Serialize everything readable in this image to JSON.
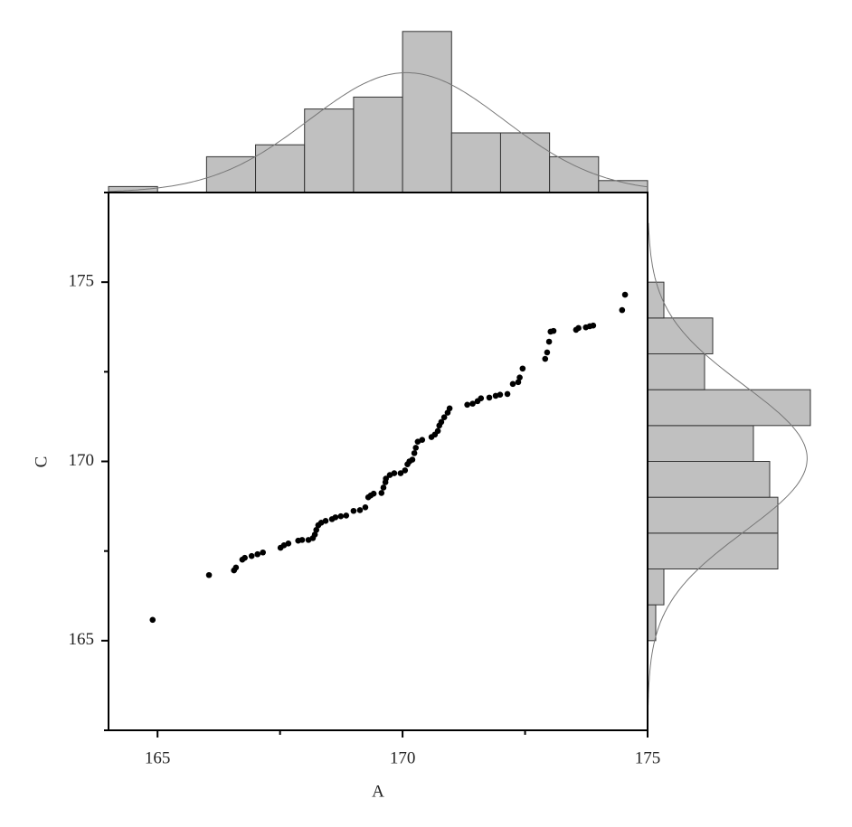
{
  "chart_data": {
    "type": "scatter",
    "x_label": "A",
    "y_label": "C",
    "x": [
      164.9,
      166.05,
      166.56,
      166.6,
      166.73,
      166.78,
      166.92,
      167.04,
      167.15,
      167.51,
      167.58,
      167.67,
      167.87,
      167.95,
      168.08,
      168.17,
      168.21,
      168.24,
      168.28,
      168.34,
      168.43,
      168.56,
      168.63,
      168.74,
      168.85,
      169.0,
      169.13,
      169.24,
      169.3,
      169.35,
      169.41,
      169.57,
      169.61,
      169.65,
      169.66,
      169.74,
      169.83,
      169.96,
      170.05,
      170.1,
      170.14,
      170.2,
      170.24,
      170.27,
      170.31,
      170.4,
      170.59,
      170.66,
      170.72,
      170.75,
      170.79,
      170.85,
      170.92,
      170.96,
      171.32,
      171.43,
      171.53,
      171.6,
      171.77,
      171.9,
      171.99,
      172.14,
      172.25,
      172.36,
      172.39,
      172.45,
      172.91,
      172.95,
      172.99,
      173.02,
      173.08,
      173.54,
      173.59,
      173.74,
      173.82,
      173.89,
      174.48,
      174.54
    ],
    "y": [
      165.58,
      166.83,
      166.96,
      167.04,
      167.26,
      167.31,
      167.36,
      167.41,
      167.46,
      167.59,
      167.66,
      167.71,
      167.79,
      167.81,
      167.81,
      167.86,
      167.96,
      168.09,
      168.22,
      168.29,
      168.34,
      168.39,
      168.44,
      168.47,
      168.49,
      168.62,
      168.64,
      168.72,
      169.0,
      169.05,
      169.1,
      169.12,
      169.27,
      169.42,
      169.52,
      169.62,
      169.67,
      169.67,
      169.75,
      169.92,
      170.0,
      170.05,
      170.23,
      170.38,
      170.55,
      170.6,
      170.68,
      170.75,
      170.85,
      171.0,
      171.1,
      171.23,
      171.36,
      171.48,
      171.58,
      171.61,
      171.68,
      171.76,
      171.78,
      171.83,
      171.86,
      171.88,
      172.16,
      172.21,
      172.34,
      172.59,
      172.86,
      173.04,
      173.34,
      173.62,
      173.64,
      173.67,
      173.72,
      173.74,
      173.77,
      173.79,
      174.22,
      174.65
    ],
    "color": "#000000",
    "xlim": [
      164,
      175
    ],
    "ylim": [
      162.5,
      177.5
    ],
    "xticks": [
      165,
      170,
      175
    ],
    "yticks": [
      165,
      170,
      175
    ],
    "marginal_x": {
      "bins": [
        164,
        165,
        166,
        167,
        168,
        169,
        170,
        171,
        172,
        173,
        174,
        175
      ],
      "counts": [
        1,
        0,
        6,
        8,
        14,
        16,
        27,
        10,
        10,
        6,
        2
      ]
    },
    "marginal_y": {
      "bins": [
        165,
        166,
        167,
        168,
        169,
        170,
        171,
        172,
        173,
        174,
        175
      ],
      "counts": [
        1,
        2,
        16,
        16,
        15,
        13,
        20,
        7,
        8,
        2
      ]
    },
    "hist_color": "#c0c0c0",
    "fit": "normal"
  }
}
